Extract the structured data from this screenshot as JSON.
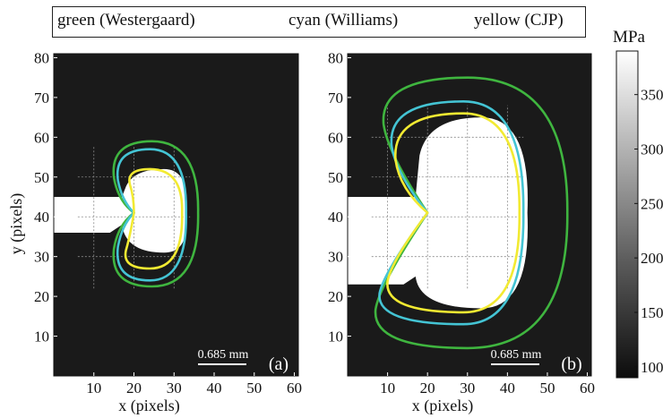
{
  "legend": {
    "green": "green (Westergaard)",
    "cyan": "cyan (Williams)",
    "yellow": "yellow (CJP)"
  },
  "colors": {
    "green": "#3fb53f",
    "cyan": "#44c4d4",
    "yellow": "#f2ea32",
    "background": "#1a1a1a",
    "plastic_zone": "#ffffff",
    "grid": "#8a8a8a"
  },
  "colorbar": {
    "unit": "MPa",
    "ticks": [
      100,
      150,
      200,
      250,
      300,
      350
    ],
    "range": [
      90,
      390
    ]
  },
  "chart_data": [
    {
      "type": "other",
      "panel_label": "(a)",
      "xlabel": "x (pixels)",
      "ylabel": "y (pixels)",
      "xlim": [
        0,
        61
      ],
      "ylim": [
        0,
        81
      ],
      "xticks": [
        10,
        20,
        30,
        40,
        50,
        60
      ],
      "yticks": [
        10,
        20,
        30,
        40,
        50,
        60,
        70,
        80
      ],
      "grid_lines_x": [
        10,
        20,
        30
      ],
      "grid_lines_y": [
        30,
        40,
        50
      ],
      "scale_bar": "0.685 mm",
      "crack": {
        "tip": [
          20,
          41
        ],
        "upper_y": 45,
        "lower_y": 36
      },
      "plastic_zone": {
        "right_x": 33,
        "top_y": 52,
        "bottom_y": 31
      },
      "contours": [
        {
          "model": "Westergaard",
          "color": "green",
          "top": [
            24.5,
            59
          ],
          "bottom": [
            24.5,
            22.5
          ],
          "right": [
            36,
            41
          ],
          "upper_left": [
            15,
            45
          ],
          "lower_left": [
            15,
            37
          ]
        },
        {
          "model": "Williams",
          "color": "cyan",
          "top": [
            24,
            57
          ],
          "bottom": [
            24,
            24
          ],
          "right": [
            33,
            41
          ],
          "upper_left": [
            16,
            45
          ],
          "lower_left": [
            16,
            37
          ]
        },
        {
          "model": "CJP",
          "color": "yellow",
          "top": [
            24,
            52
          ],
          "bottom": [
            24,
            27
          ],
          "right": [
            32,
            41
          ],
          "upper_left": [
            19,
            46
          ],
          "lower_left": [
            18,
            34
          ]
        }
      ]
    },
    {
      "type": "other",
      "panel_label": "(b)",
      "xlabel": "x (pixels)",
      "ylabel": "",
      "xlim": [
        0,
        61
      ],
      "ylim": [
        0,
        81
      ],
      "xticks": [
        10,
        20,
        30,
        40,
        50,
        60
      ],
      "yticks": [
        10,
        20,
        30,
        40,
        50,
        60,
        70,
        80
      ],
      "grid_lines_x": [
        10,
        20,
        30,
        40
      ],
      "grid_lines_y": [
        30,
        40,
        50,
        60
      ],
      "scale_bar": "0.685 mm",
      "crack": {
        "tip": [
          20,
          41
        ],
        "upper_y": 45,
        "lower_y": 23
      },
      "plastic_zone": {
        "right_x": 45,
        "top_y": 65,
        "bottom_y": 17
      },
      "contours": [
        {
          "model": "Westergaard",
          "color": "green",
          "top": [
            30,
            75
          ],
          "bottom": [
            30,
            7
          ],
          "right": [
            55,
            41
          ],
          "upper_left": [
            9,
            57
          ],
          "lower_left": [
            7,
            22
          ]
        },
        {
          "model": "Williams",
          "color": "cyan",
          "top": [
            29,
            69
          ],
          "bottom": [
            29,
            13
          ],
          "right": [
            44,
            41
          ],
          "upper_left": [
            11,
            52
          ],
          "lower_left": [
            8,
            25
          ]
        },
        {
          "model": "CJP",
          "color": "yellow",
          "top": [
            29,
            66
          ],
          "bottom": [
            29,
            16
          ],
          "right": [
            43,
            41
          ],
          "upper_left": [
            12,
            48
          ],
          "lower_left": [
            10,
            28
          ]
        }
      ]
    }
  ]
}
